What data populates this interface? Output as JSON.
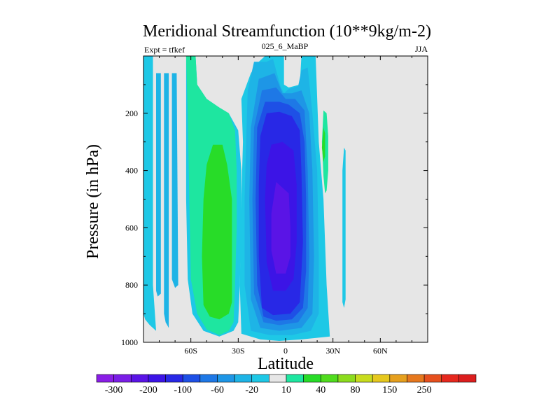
{
  "chart_data": {
    "type": "heatmap",
    "title": "Meridional Streamfunction (10**9kg/m-2)",
    "subtitle_left": "Expt = tfkef",
    "subtitle_center": "025_6_MaBP",
    "subtitle_right": "JJA",
    "xlabel": "Latitude",
    "ylabel": "Pressure (in hPa)",
    "xlim": [
      -90,
      90
    ],
    "ylim": [
      1000,
      0
    ],
    "y_reversed": true,
    "x_ticks": [
      {
        "value": -60,
        "label": "60S"
      },
      {
        "value": -30,
        "label": "30S"
      },
      {
        "value": 0,
        "label": "0"
      },
      {
        "value": 30,
        "label": "30N"
      },
      {
        "value": 60,
        "label": "60N"
      }
    ],
    "y_ticks": [
      {
        "value": 200,
        "label": "200"
      },
      {
        "value": 400,
        "label": "400"
      },
      {
        "value": 600,
        "label": "600"
      },
      {
        "value": 800,
        "label": "800"
      },
      {
        "value": 1000,
        "label": "1000"
      }
    ],
    "background_color": "#e6e6e6",
    "colorbar": {
      "colors": [
        "#8a1ee6",
        "#7a1ee6",
        "#5a14e6",
        "#3c14e6",
        "#2828e6",
        "#1e50e6",
        "#1e78e6",
        "#1e96e6",
        "#1eb4e6",
        "#1ec8e6",
        "#e6e6e6",
        "#1ee6a0",
        "#28dc28",
        "#50dc1e",
        "#8cdc1e",
        "#c8dc1e",
        "#e6c81e",
        "#e6a01e",
        "#e6781e",
        "#e6501e",
        "#e6281e",
        "#dc1e1e"
      ],
      "labels": [
        {
          "boundary": 1,
          "text": "-300"
        },
        {
          "boundary": 3,
          "text": "-200"
        },
        {
          "boundary": 5,
          "text": "-100"
        },
        {
          "boundary": 7,
          "text": "-60"
        },
        {
          "boundary": 9,
          "text": "-20"
        },
        {
          "boundary": 11,
          "text": "10"
        },
        {
          "boundary": 13,
          "text": "40"
        },
        {
          "boundary": 15,
          "text": "80"
        },
        {
          "boundary": 17,
          "text": "150"
        },
        {
          "boundary": 19,
          "text": "250"
        }
      ]
    },
    "regions": [
      {
        "name": "sh-polar-cell",
        "color": "#1ec8e6",
        "points": [
          [
            -90,
            0
          ],
          [
            -84,
            0
          ],
          [
            -84,
            800
          ],
          [
            -82,
            960
          ],
          [
            -86,
            940
          ],
          [
            -89,
            920
          ],
          [
            -90,
            900
          ]
        ]
      },
      {
        "name": "sh-polar-inner-1",
        "color": "#1eb4e6",
        "points": [
          [
            -82,
            60
          ],
          [
            -79,
            60
          ],
          [
            -79,
            830
          ],
          [
            -81,
            840
          ],
          [
            -82,
            820
          ]
        ]
      },
      {
        "name": "sh-polar-inner-2",
        "color": "#1eb4e6",
        "points": [
          [
            -77,
            60
          ],
          [
            -74,
            60
          ],
          [
            -74,
            950
          ],
          [
            -76,
            930
          ],
          [
            -77,
            900
          ]
        ]
      },
      {
        "name": "sh-polar-inner-3",
        "color": "#1eb4e6",
        "points": [
          [
            -72,
            60
          ],
          [
            -69,
            60
          ],
          [
            -68,
            800
          ],
          [
            -70,
            810
          ],
          [
            -72,
            780
          ]
        ]
      },
      {
        "name": "ferrel-outer-cyan",
        "color": "#1ec8e6",
        "points": [
          [
            -63,
            0
          ],
          [
            -57,
            0
          ],
          [
            -56,
            100
          ],
          [
            -50,
            150
          ],
          [
            -42,
            180
          ],
          [
            -36,
            200
          ],
          [
            -30,
            260
          ],
          [
            -28,
            400
          ],
          [
            -28,
            600
          ],
          [
            -29,
            800
          ],
          [
            -30,
            930
          ],
          [
            -33,
            960
          ],
          [
            -42,
            980
          ],
          [
            -52,
            960
          ],
          [
            -59,
            900
          ],
          [
            -62,
            780
          ],
          [
            -63,
            500
          ],
          [
            -63,
            200
          ]
        ]
      },
      {
        "name": "ferrel-green",
        "color": "#1ee6a0",
        "points": [
          [
            -63,
            0
          ],
          [
            -57,
            0
          ],
          [
            -56,
            100
          ],
          [
            -50,
            150
          ],
          [
            -42,
            180
          ],
          [
            -36,
            200
          ],
          [
            -32,
            260
          ],
          [
            -31,
            400
          ],
          [
            -31,
            600
          ],
          [
            -32,
            800
          ],
          [
            -33,
            930
          ],
          [
            -36,
            960
          ],
          [
            -42,
            975
          ],
          [
            -50,
            955
          ],
          [
            -56,
            900
          ],
          [
            -60,
            780
          ],
          [
            -61,
            500
          ],
          [
            -62,
            200
          ]
        ]
      },
      {
        "name": "ferrel-core",
        "color": "#28dc28",
        "points": [
          [
            -46,
            310
          ],
          [
            -40,
            310
          ],
          [
            -37,
            380
          ],
          [
            -34,
            500
          ],
          [
            -34,
            700
          ],
          [
            -34,
            860
          ],
          [
            -36,
            900
          ],
          [
            -42,
            920
          ],
          [
            -48,
            910
          ],
          [
            -52,
            870
          ],
          [
            -53,
            700
          ],
          [
            -52,
            500
          ],
          [
            -50,
            380
          ]
        ]
      },
      {
        "name": "hadley-l1",
        "color": "#1ec8e6",
        "points": [
          [
            -13,
            0
          ],
          [
            -1,
            0
          ],
          [
            -1,
            100
          ],
          [
            2,
            110
          ],
          [
            9,
            100
          ],
          [
            10,
            0
          ],
          [
            19,
            0
          ],
          [
            21,
            300
          ],
          [
            24,
            500
          ],
          [
            26,
            800
          ],
          [
            28,
            980
          ],
          [
            10,
            990
          ],
          [
            -4,
            995
          ],
          [
            -16,
            990
          ],
          [
            -28,
            970
          ],
          [
            -29,
            800
          ],
          [
            -28,
            500
          ],
          [
            -27,
            300
          ],
          [
            -28,
            150
          ],
          [
            -22,
            60
          ],
          [
            -17,
            20
          ]
        ]
      },
      {
        "name": "hadley-l2",
        "color": "#1eb4e6",
        "points": [
          [
            -20,
            20
          ],
          [
            -12,
            20
          ],
          [
            -8,
            10
          ],
          [
            -3,
            110
          ],
          [
            -1,
            130
          ],
          [
            2,
            115
          ],
          [
            8,
            105
          ],
          [
            10,
            50
          ],
          [
            14,
            40
          ],
          [
            17,
            200
          ],
          [
            20,
            400
          ],
          [
            21,
            700
          ],
          [
            21,
            900
          ],
          [
            16,
            960
          ],
          [
            4,
            975
          ],
          [
            -10,
            975
          ],
          [
            -22,
            960
          ],
          [
            -26,
            800
          ],
          [
            -26,
            500
          ],
          [
            -25,
            300
          ],
          [
            -24,
            120
          ]
        ]
      },
      {
        "name": "hadley-l3",
        "color": "#1e96e6",
        "points": [
          [
            -17,
            80
          ],
          [
            -7,
            60
          ],
          [
            -2,
            130
          ],
          [
            4,
            130
          ],
          [
            10,
            120
          ],
          [
            15,
            200
          ],
          [
            17,
            400
          ],
          [
            18,
            700
          ],
          [
            17,
            900
          ],
          [
            10,
            950
          ],
          [
            -4,
            960
          ],
          [
            -16,
            950
          ],
          [
            -22,
            850
          ],
          [
            -23,
            500
          ],
          [
            -22,
            250
          ]
        ]
      },
      {
        "name": "hadley-l4",
        "color": "#1e78e6",
        "points": [
          [
            -15,
            120
          ],
          [
            -6,
            110
          ],
          [
            0,
            150
          ],
          [
            6,
            150
          ],
          [
            12,
            190
          ],
          [
            14,
            400
          ],
          [
            15,
            700
          ],
          [
            14,
            880
          ],
          [
            8,
            930
          ],
          [
            -4,
            940
          ],
          [
            -14,
            930
          ],
          [
            -20,
            830
          ],
          [
            -21,
            500
          ],
          [
            -20,
            250
          ]
        ]
      },
      {
        "name": "hadley-l5",
        "color": "#1e50e6",
        "points": [
          [
            -13,
            160
          ],
          [
            -4,
            160
          ],
          [
            2,
            170
          ],
          [
            9,
            200
          ],
          [
            12,
            300
          ],
          [
            13,
            500
          ],
          [
            13,
            750
          ],
          [
            11,
            880
          ],
          [
            4,
            920
          ],
          [
            -6,
            925
          ],
          [
            -14,
            910
          ],
          [
            -18,
            800
          ],
          [
            -19,
            500
          ],
          [
            -18,
            250
          ]
        ]
      },
      {
        "name": "hadley-l6",
        "color": "#2828e6",
        "points": [
          [
            -12,
            200
          ],
          [
            -4,
            195
          ],
          [
            4,
            210
          ],
          [
            9,
            260
          ],
          [
            10,
            400
          ],
          [
            11,
            650
          ],
          [
            9,
            860
          ],
          [
            3,
            900
          ],
          [
            -8,
            905
          ],
          [
            -15,
            880
          ],
          [
            -17,
            700
          ],
          [
            -17,
            450
          ],
          [
            -16,
            280
          ]
        ]
      },
      {
        "name": "hadley-l7",
        "color": "#3c14e6",
        "points": [
          [
            -9,
            310
          ],
          [
            -2,
            300
          ],
          [
            5,
            330
          ],
          [
            7,
            450
          ],
          [
            7,
            650
          ],
          [
            5,
            780
          ],
          [
            0,
            820
          ],
          [
            -8,
            820
          ],
          [
            -12,
            720
          ],
          [
            -13,
            500
          ],
          [
            -12,
            380
          ]
        ]
      },
      {
        "name": "hadley-core",
        "color": "#5a14e6",
        "points": [
          [
            -6,
            440
          ],
          [
            -2,
            460
          ],
          [
            2,
            480
          ],
          [
            3,
            600
          ],
          [
            3,
            700
          ],
          [
            0,
            760
          ],
          [
            -6,
            760
          ],
          [
            -9,
            680
          ],
          [
            -9,
            550
          ]
        ]
      },
      {
        "name": "nh-cell-green",
        "color": "#1ee6a0",
        "points": [
          [
            24,
            190
          ],
          [
            26,
            200
          ],
          [
            27,
            280
          ],
          [
            27,
            400
          ],
          [
            26,
            470
          ],
          [
            25,
            480
          ],
          [
            24,
            420
          ],
          [
            23,
            300
          ]
        ]
      },
      {
        "name": "nh-cell-core",
        "color": "#28dc28",
        "points": [
          [
            24,
            250
          ],
          [
            25,
            270
          ],
          [
            25,
            350
          ],
          [
            24,
            370
          ],
          [
            23,
            320
          ]
        ]
      },
      {
        "name": "nh-minor",
        "color": "#1ec8e6",
        "points": [
          [
            37,
            320
          ],
          [
            38,
            330
          ],
          [
            38,
            600
          ],
          [
            38,
            850
          ],
          [
            37,
            880
          ],
          [
            36,
            860
          ],
          [
            36,
            600
          ],
          [
            36,
            400
          ]
        ]
      }
    ]
  }
}
